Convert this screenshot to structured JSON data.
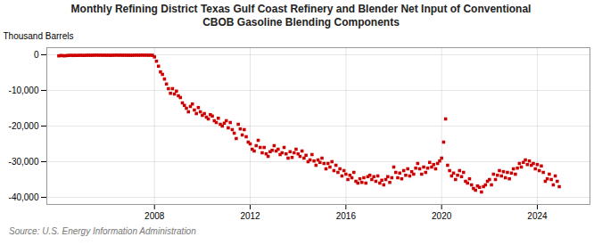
{
  "chart_data": {
    "type": "scatter",
    "title": "Monthly Refining District Texas Gulf Coast Refinery and Blender Net Input of Conventional\nCBOB Gasoline Blending Components",
    "ylabel": "Thousand Barrels",
    "caption": "Source: U.S. Energy Information Administration",
    "color": "#cc0000",
    "marker": "square",
    "grid": true,
    "xlim": [
      2003.5,
      2026.2
    ],
    "xticks": [
      2008,
      2012,
      2016,
      2020,
      2024
    ],
    "ylim": [
      -42000,
      2000
    ],
    "yticks": [
      0,
      {
        "value": -10000,
        "label": "-10,000"
      },
      {
        "value": -20000,
        "label": "-20,000"
      },
      {
        "value": -30000,
        "label": "-30,000"
      },
      {
        "value": -40000,
        "label": "-40,000"
      }
    ],
    "x": [
      2004.0,
      2004.083,
      2004.167,
      2004.25,
      2004.333,
      2004.417,
      2004.5,
      2004.583,
      2004.667,
      2004.75,
      2004.833,
      2004.917,
      2005.0,
      2005.083,
      2005.167,
      2005.25,
      2005.333,
      2005.417,
      2005.5,
      2005.583,
      2005.667,
      2005.75,
      2005.833,
      2005.917,
      2006.0,
      2006.083,
      2006.167,
      2006.25,
      2006.333,
      2006.417,
      2006.5,
      2006.583,
      2006.667,
      2006.75,
      2006.833,
      2006.917,
      2007.0,
      2007.083,
      2007.167,
      2007.25,
      2007.333,
      2007.417,
      2007.5,
      2007.583,
      2007.667,
      2007.75,
      2007.833,
      2007.917,
      2008.0,
      2008.083,
      2008.167,
      2008.25,
      2008.333,
      2008.417,
      2008.5,
      2008.583,
      2008.667,
      2008.75,
      2008.833,
      2008.917,
      2009.0,
      2009.083,
      2009.167,
      2009.25,
      2009.333,
      2009.417,
      2009.5,
      2009.583,
      2009.667,
      2009.75,
      2009.833,
      2009.917,
      2010.0,
      2010.083,
      2010.167,
      2010.25,
      2010.333,
      2010.417,
      2010.5,
      2010.583,
      2010.667,
      2010.75,
      2010.833,
      2010.917,
      2011.0,
      2011.083,
      2011.167,
      2011.25,
      2011.333,
      2011.417,
      2011.5,
      2011.583,
      2011.667,
      2011.75,
      2011.833,
      2011.917,
      2012.0,
      2012.083,
      2012.167,
      2012.25,
      2012.333,
      2012.417,
      2012.5,
      2012.583,
      2012.667,
      2012.75,
      2012.833,
      2012.917,
      2013.0,
      2013.083,
      2013.167,
      2013.25,
      2013.333,
      2013.417,
      2013.5,
      2013.583,
      2013.667,
      2013.75,
      2013.833,
      2013.917,
      2014.0,
      2014.083,
      2014.167,
      2014.25,
      2014.333,
      2014.417,
      2014.5,
      2014.583,
      2014.667,
      2014.75,
      2014.833,
      2014.917,
      2015.0,
      2015.083,
      2015.167,
      2015.25,
      2015.333,
      2015.417,
      2015.5,
      2015.583,
      2015.667,
      2015.75,
      2015.833,
      2015.917,
      2016.0,
      2016.083,
      2016.167,
      2016.25,
      2016.333,
      2016.417,
      2016.5,
      2016.583,
      2016.667,
      2016.75,
      2016.833,
      2016.917,
      2017.0,
      2017.083,
      2017.167,
      2017.25,
      2017.333,
      2017.417,
      2017.5,
      2017.583,
      2017.667,
      2017.75,
      2017.833,
      2017.917,
      2018.0,
      2018.083,
      2018.167,
      2018.25,
      2018.333,
      2018.417,
      2018.5,
      2018.583,
      2018.667,
      2018.75,
      2018.833,
      2018.917,
      2019.0,
      2019.083,
      2019.167,
      2019.25,
      2019.333,
      2019.417,
      2019.5,
      2019.583,
      2019.667,
      2019.75,
      2019.833,
      2019.917,
      2020.0,
      2020.083,
      2020.167,
      2020.25,
      2020.333,
      2020.417,
      2020.5,
      2020.583,
      2020.667,
      2020.75,
      2020.833,
      2020.917,
      2021.0,
      2021.083,
      2021.167,
      2021.25,
      2021.333,
      2021.417,
      2021.5,
      2021.583,
      2021.667,
      2021.75,
      2021.833,
      2021.917,
      2022.0,
      2022.083,
      2022.167,
      2022.25,
      2022.333,
      2022.417,
      2022.5,
      2022.583,
      2022.667,
      2022.75,
      2022.833,
      2022.917,
      2023.0,
      2023.083,
      2023.167,
      2023.25,
      2023.333,
      2023.417,
      2023.5,
      2023.583,
      2023.667,
      2023.75,
      2023.833,
      2023.917,
      2024.0,
      2024.083,
      2024.167,
      2024.25,
      2024.333,
      2024.417,
      2024.5,
      2024.583,
      2024.667,
      2024.75,
      2024.833,
      2024.917
    ],
    "values": [
      -300,
      -200,
      -250,
      -280,
      -220,
      -180,
      -150,
      -200,
      -170,
      -190,
      -160,
      -140,
      -180,
      -160,
      -140,
      -120,
      -150,
      -130,
      -110,
      -90,
      -120,
      -100,
      -130,
      -110,
      -140,
      -120,
      -160,
      -130,
      -110,
      -90,
      -120,
      -100,
      -130,
      -110,
      -140,
      -120,
      -150,
      -130,
      -110,
      -90,
      -120,
      -100,
      -80,
      -110,
      -90,
      -120,
      -100,
      -150,
      -600,
      -1800,
      -3200,
      -4800,
      -5500,
      -6800,
      -8200,
      -9500,
      -10800,
      -9500,
      -11000,
      -10200,
      -11500,
      -12000,
      -13500,
      -14200,
      -15000,
      -16000,
      -14500,
      -13800,
      -15500,
      -16500,
      -14800,
      -16000,
      -17000,
      -16500,
      -17500,
      -18000,
      -16800,
      -17200,
      -18500,
      -19000,
      -17800,
      -19500,
      -20000,
      -19200,
      -18500,
      -20500,
      -19000,
      -21000,
      -22000,
      -23500,
      -19500,
      -20800,
      -22500,
      -21000,
      -23000,
      -24500,
      -25000,
      -26500,
      -27000,
      -25500,
      -24000,
      -26000,
      -27500,
      -26000,
      -27800,
      -28500,
      -27200,
      -26800,
      -25500,
      -27000,
      -26500,
      -28000,
      -27500,
      -26000,
      -27800,
      -29000,
      -27200,
      -28800,
      -27500,
      -26500,
      -27800,
      -28500,
      -27000,
      -29000,
      -28200,
      -30000,
      -29500,
      -28000,
      -29800,
      -31000,
      -29500,
      -30200,
      -29000,
      -30500,
      -32000,
      -30500,
      -31500,
      -30000,
      -32500,
      -31000,
      -33000,
      -32000,
      -34000,
      -32500,
      -33500,
      -35000,
      -33800,
      -34500,
      -33000,
      -35500,
      -36000,
      -34800,
      -35800,
      -34500,
      -36000,
      -34200,
      -33800,
      -35000,
      -34200,
      -35500,
      -34000,
      -36000,
      -35200,
      -36500,
      -35000,
      -34200,
      -35800,
      -34500,
      -31500,
      -33000,
      -34500,
      -33200,
      -34800,
      -32500,
      -33800,
      -32000,
      -34000,
      -32800,
      -33500,
      -31800,
      -30500,
      -32000,
      -33500,
      -31500,
      -33000,
      -31800,
      -30200,
      -31500,
      -30800,
      -32000,
      -30500,
      -29800,
      -29000,
      -24500,
      -18000,
      -31000,
      -32500,
      -34000,
      -33200,
      -35000,
      -33800,
      -32500,
      -34200,
      -33000,
      -35500,
      -36000,
      -34800,
      -36500,
      -37500,
      -38000,
      -36800,
      -37200,
      -38500,
      -37000,
      -36500,
      -35500,
      -35000,
      -36500,
      -33500,
      -35000,
      -33800,
      -32500,
      -34000,
      -32800,
      -34500,
      -33000,
      -34800,
      -33200,
      -32000,
      -33500,
      -31800,
      -30500,
      -31500,
      -30200,
      -29500,
      -30800,
      -29800,
      -31000,
      -30500,
      -32000,
      -30800,
      -32500,
      -31200,
      -33000,
      -35500,
      -34800,
      -33500,
      -35000,
      -36500,
      -34000,
      -35500,
      -37000
    ]
  }
}
